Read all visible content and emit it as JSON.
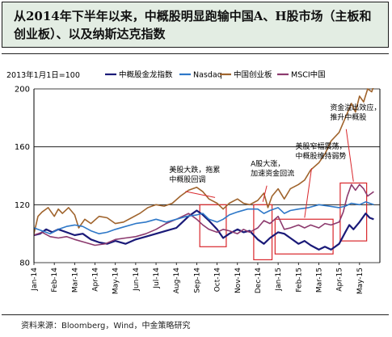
{
  "title": "从2014年下半年以来，中概股明显跑输中国A、H股市场（主板和创业板）、以及纳斯达克指数",
  "source": "资料来源：Bloomberg，Wind，中金策略研究",
  "chart_data": {
    "type": "line",
    "base_label": "2013年1月1日=100",
    "ylim": [
      80,
      200
    ],
    "yticks": [
      80,
      120,
      160,
      200
    ],
    "xlim": [
      0,
      17
    ],
    "x_ticks": [
      "Jan-14",
      "Feb-14",
      "Mar-14",
      "Apr-14",
      "May-14",
      "Jun-14",
      "Jul-14",
      "Aug-14",
      "Sep-14",
      "Oct-14",
      "Nov-14",
      "Dec-14",
      "Jan-15",
      "Feb-15",
      "Mar-15",
      "Apr-15",
      "May-15"
    ],
    "series": [
      {
        "name": "中概股金龙指数",
        "color": "#1a1a78",
        "width": 2.2,
        "points": [
          [
            0,
            99
          ],
          [
            0.3,
            100
          ],
          [
            0.6,
            103
          ],
          [
            0.9,
            101
          ],
          [
            1.2,
            103
          ],
          [
            1.6,
            101
          ],
          [
            2,
            99
          ],
          [
            2.4,
            100
          ],
          [
            2.8,
            96
          ],
          [
            3.2,
            94
          ],
          [
            3.6,
            93
          ],
          [
            4,
            95
          ],
          [
            4.5,
            93
          ],
          [
            5,
            96
          ],
          [
            5.5,
            98
          ],
          [
            6,
            100
          ],
          [
            6.5,
            102
          ],
          [
            7,
            104
          ],
          [
            7.3,
            108
          ],
          [
            7.6,
            112
          ],
          [
            8,
            116
          ],
          [
            8.3,
            113
          ],
          [
            8.6,
            109
          ],
          [
            9,
            103
          ],
          [
            9.3,
            97
          ],
          [
            9.6,
            100
          ],
          [
            10,
            103
          ],
          [
            10.3,
            101
          ],
          [
            10.6,
            102
          ],
          [
            11,
            96
          ],
          [
            11.3,
            93
          ],
          [
            11.6,
            97
          ],
          [
            12,
            101
          ],
          [
            12.3,
            100
          ],
          [
            12.6,
            97
          ],
          [
            13,
            93
          ],
          [
            13.3,
            95
          ],
          [
            13.6,
            92
          ],
          [
            14,
            89
          ],
          [
            14.3,
            91
          ],
          [
            14.6,
            89
          ],
          [
            15,
            93
          ],
          [
            15.3,
            101
          ],
          [
            15.5,
            106
          ],
          [
            15.7,
            103
          ],
          [
            16,
            108
          ],
          [
            16.3,
            114
          ],
          [
            16.5,
            111
          ],
          [
            16.7,
            110
          ]
        ]
      },
      {
        "name": "Nasdaq",
        "color": "#2e78c8",
        "width": 1.6,
        "points": [
          [
            0,
            104
          ],
          [
            0.4,
            102
          ],
          [
            0.8,
            100
          ],
          [
            1.2,
            103
          ],
          [
            1.6,
            105
          ],
          [
            2,
            106
          ],
          [
            2.4,
            105
          ],
          [
            2.8,
            102
          ],
          [
            3.2,
            100
          ],
          [
            3.6,
            101
          ],
          [
            4,
            103
          ],
          [
            4.5,
            105
          ],
          [
            5,
            107
          ],
          [
            5.5,
            108
          ],
          [
            6,
            110
          ],
          [
            6.5,
            108
          ],
          [
            7,
            110
          ],
          [
            7.5,
            112
          ],
          [
            8,
            113
          ],
          [
            8.3,
            114
          ],
          [
            8.6,
            110
          ],
          [
            9,
            108
          ],
          [
            9.3,
            110
          ],
          [
            9.6,
            113
          ],
          [
            10,
            115
          ],
          [
            10.5,
            117
          ],
          [
            11,
            117
          ],
          [
            11.3,
            114
          ],
          [
            11.6,
            116
          ],
          [
            12,
            118
          ],
          [
            12.3,
            114
          ],
          [
            12.6,
            116
          ],
          [
            13,
            117
          ],
          [
            13.5,
            118
          ],
          [
            14,
            120
          ],
          [
            14.5,
            119
          ],
          [
            15,
            118
          ],
          [
            15.3,
            119
          ],
          [
            15.6,
            121
          ],
          [
            16,
            120
          ],
          [
            16.3,
            122
          ],
          [
            16.5,
            121
          ],
          [
            16.7,
            120
          ]
        ]
      },
      {
        "name": "中国创业板",
        "color": "#a0642d",
        "width": 1.6,
        "points": [
          [
            0,
            100
          ],
          [
            0.2,
            112
          ],
          [
            0.4,
            115
          ],
          [
            0.7,
            118
          ],
          [
            1,
            112
          ],
          [
            1.2,
            117
          ],
          [
            1.4,
            114
          ],
          [
            1.7,
            118
          ],
          [
            2,
            113
          ],
          [
            2.2,
            104
          ],
          [
            2.5,
            110
          ],
          [
            2.8,
            107
          ],
          [
            3.2,
            112
          ],
          [
            3.6,
            111
          ],
          [
            4,
            107
          ],
          [
            4.4,
            108
          ],
          [
            4.8,
            111
          ],
          [
            5.2,
            114
          ],
          [
            5.6,
            118
          ],
          [
            6,
            120
          ],
          [
            6.4,
            119
          ],
          [
            6.8,
            121
          ],
          [
            7.2,
            126
          ],
          [
            7.6,
            130
          ],
          [
            8,
            132
          ],
          [
            8.3,
            129
          ],
          [
            8.6,
            124
          ],
          [
            9,
            121
          ],
          [
            9.3,
            117
          ],
          [
            9.6,
            121
          ],
          [
            10,
            124
          ],
          [
            10.3,
            121
          ],
          [
            10.6,
            120
          ],
          [
            11,
            123
          ],
          [
            11.3,
            128
          ],
          [
            11.5,
            118
          ],
          [
            11.7,
            126
          ],
          [
            12,
            131
          ],
          [
            12.3,
            124
          ],
          [
            12.6,
            131
          ],
          [
            13,
            134
          ],
          [
            13.3,
            137
          ],
          [
            13.6,
            144
          ],
          [
            14,
            149
          ],
          [
            14.3,
            155
          ],
          [
            14.6,
            164
          ],
          [
            15,
            170
          ],
          [
            15.3,
            180
          ],
          [
            15.6,
            190
          ],
          [
            15.8,
            184
          ],
          [
            16,
            195
          ],
          [
            16.2,
            191
          ],
          [
            16.4,
            200
          ],
          [
            16.6,
            198
          ],
          [
            16.7,
            202
          ]
        ]
      },
      {
        "name": "MSCI中国",
        "color": "#8c3a6e",
        "width": 1.6,
        "points": [
          [
            0,
            99
          ],
          [
            0.4,
            101
          ],
          [
            0.8,
            98
          ],
          [
            1.2,
            97
          ],
          [
            1.6,
            98
          ],
          [
            2,
            96
          ],
          [
            2.5,
            94
          ],
          [
            3,
            92
          ],
          [
            3.5,
            93
          ],
          [
            4,
            96
          ],
          [
            4.5,
            97
          ],
          [
            5,
            98
          ],
          [
            5.5,
            100
          ],
          [
            6,
            103
          ],
          [
            6.5,
            107
          ],
          [
            7,
            110
          ],
          [
            7.3,
            112
          ],
          [
            7.6,
            114
          ],
          [
            8,
            110
          ],
          [
            8.3,
            106
          ],
          [
            8.6,
            103
          ],
          [
            9,
            101
          ],
          [
            9.3,
            103
          ],
          [
            9.6,
            102
          ],
          [
            10,
            100
          ],
          [
            10.3,
            103
          ],
          [
            10.6,
            101
          ],
          [
            11,
            104
          ],
          [
            11.3,
            109
          ],
          [
            11.6,
            107
          ],
          [
            12,
            112
          ],
          [
            12.3,
            103
          ],
          [
            12.6,
            104
          ],
          [
            13,
            106
          ],
          [
            13.3,
            104
          ],
          [
            13.6,
            106
          ],
          [
            14,
            104
          ],
          [
            14.3,
            107
          ],
          [
            14.6,
            106
          ],
          [
            15,
            108
          ],
          [
            15.2,
            115
          ],
          [
            15.4,
            126
          ],
          [
            15.6,
            134
          ],
          [
            15.8,
            130
          ],
          [
            16,
            134
          ],
          [
            16.2,
            131
          ],
          [
            16.4,
            126
          ],
          [
            16.6,
            128
          ],
          [
            16.7,
            129
          ]
        ]
      }
    ],
    "highlights": [
      {
        "x": [
          8.15,
          9.45
        ],
        "y": [
          91,
          120
        ]
      },
      {
        "x": [
          10.8,
          11.7
        ],
        "y": [
          82,
          120
        ]
      },
      {
        "x": [
          11.85,
          14.7
        ],
        "y": [
          86,
          110
        ]
      },
      {
        "x": [
          15.05,
          16.35
        ],
        "y": [
          95,
          135
        ]
      }
    ],
    "annotations": [
      {
        "lines": [
          "美股大跌，拖累",
          "中概股回调"
        ],
        "ax": 8.9,
        "ay": 125,
        "lx": 6.65,
        "ly": 137
      },
      {
        "lines": [
          "A股大涨，",
          "加速资金回流"
        ],
        "ax": 11.25,
        "ay": 122,
        "lx": 10.65,
        "ly": 141
      },
      {
        "lines": [
          "美股窄幅震荡，",
          "中概股维持弱势"
        ],
        "ax": 13.3,
        "ay": 111,
        "lx": 12.85,
        "ly": 153
      },
      {
        "lines": [
          "资金溢出效应，",
          "推升中概股"
        ],
        "ax": 15.7,
        "ay": 136,
        "lx": 14.55,
        "ly": 180
      }
    ]
  }
}
